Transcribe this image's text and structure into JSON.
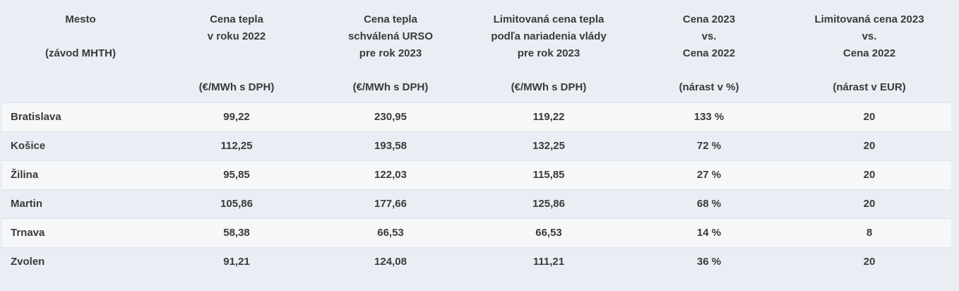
{
  "table": {
    "headers": [
      {
        "lines": [
          "Mesto"
        ],
        "note": "(závod MHTH)"
      },
      {
        "lines": [
          "Cena tepla",
          "v roku 2022"
        ],
        "unit": "(€/MWh s DPH)"
      },
      {
        "lines": [
          "Cena tepla",
          "schválená URSO",
          "pre rok 2023"
        ],
        "unit": "(€/MWh s DPH)"
      },
      {
        "lines": [
          "Limitovaná cena tepla",
          "podľa nariadenia vlády",
          "pre rok 2023"
        ],
        "unit": "(€/MWh s DPH)"
      },
      {
        "lines": [
          "Cena 2023",
          "vs.",
          "Cena 2022"
        ],
        "unit": "(nárast v %)"
      },
      {
        "lines": [
          "Limitovaná cena 2023",
          "vs.",
          "Cena 2022"
        ],
        "unit": "(nárast v EUR)"
      }
    ],
    "rows": [
      [
        "Bratislava",
        "99,22",
        "230,95",
        "119,22",
        "133 %",
        "20"
      ],
      [
        "Košice",
        "112,25",
        "193,58",
        "132,25",
        "72 %",
        "20"
      ],
      [
        "Žilina",
        "95,85",
        "122,03",
        "115,85",
        "27 %",
        "20"
      ],
      [
        "Martin",
        "105,86",
        "177,66",
        "125,86",
        "68 %",
        "20"
      ],
      [
        "Trnava",
        "58,38",
        "66,53",
        "66,53",
        "14 %",
        "8"
      ],
      [
        "Zvolen",
        "91,21",
        "124,08",
        "111,21",
        "36 %",
        "20"
      ]
    ]
  }
}
